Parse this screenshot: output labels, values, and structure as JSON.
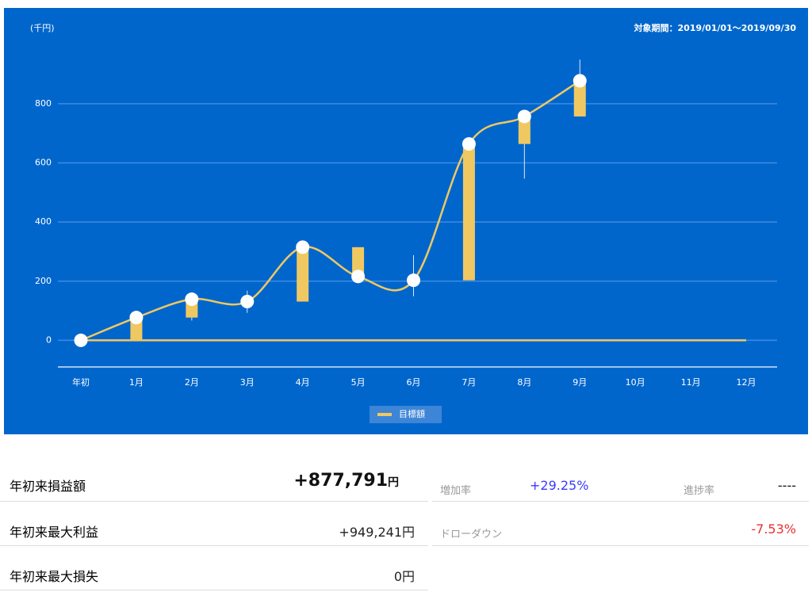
{
  "chart_data": {
    "type": "candlestick",
    "unit_label": "(千円)",
    "period": "対象期間：2019/01/01〜2019/09/30",
    "categories": [
      "年初",
      "1月",
      "2月",
      "3月",
      "4月",
      "5月",
      "6月",
      "7月",
      "8月",
      "9月",
      "10月",
      "11月",
      "12月"
    ],
    "open": [
      null,
      0,
      77,
      139,
      131,
      315,
      216,
      203,
      664,
      757,
      null,
      null,
      null
    ],
    "close": [
      null,
      77,
      139,
      131,
      315,
      216,
      203,
      664,
      757,
      877.791,
      null,
      null,
      null
    ],
    "high": [
      null,
      null,
      null,
      168,
      null,
      null,
      288,
      null,
      null,
      949.241,
      null,
      null,
      null
    ],
    "low": [
      null,
      null,
      67,
      93,
      null,
      null,
      149,
      null,
      547,
      null,
      null,
      null,
      null
    ],
    "points": [
      0,
      77,
      139,
      131,
      315,
      216,
      203,
      664,
      757,
      877.791,
      null,
      null,
      null
    ],
    "candle_color": "#f0c862",
    "point_color": "#ffffff",
    "series": [
      {
        "name": "目標額",
        "color": "#f0c862",
        "values": [
          0,
          0,
          0,
          0,
          0,
          0,
          0,
          0,
          0,
          0,
          0,
          0,
          0
        ]
      }
    ],
    "ylim": [
      -90,
      990
    ],
    "yticks": [
      0,
      200,
      400,
      600,
      800
    ],
    "grid": true,
    "legend": "bottom"
  },
  "table": {
    "rows": [
      {
        "label": "年初来損益額",
        "value": "+877,791",
        "unit": "円",
        "k1": "増加率",
        "v1": "+29.25%",
        "k2": "進捗率",
        "v2": "----"
      },
      {
        "label": "年初来最大利益",
        "value": "+949,241円",
        "k1": "ドローダウン",
        "v1": "-7.53%"
      },
      {
        "label": "年初来最大損失",
        "value": "0円"
      }
    ]
  }
}
